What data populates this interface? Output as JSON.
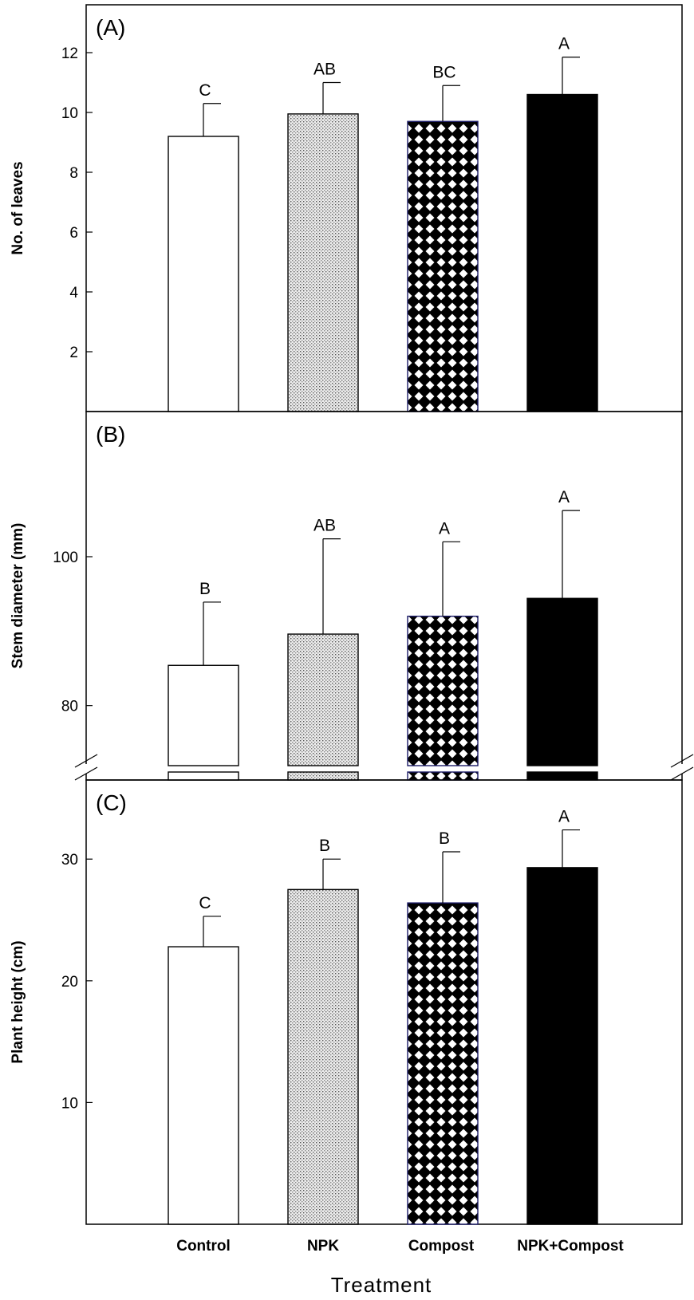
{
  "chart_data": {
    "type": "bar",
    "categories": [
      "Control",
      "NPK",
      "Compost",
      "NPK+Compost"
    ],
    "xlabel": "Treatment",
    "panels": [
      {
        "label": "(A)",
        "ylabel": "No. of leaves",
        "ylim": [
          0,
          13.6
        ],
        "yticks": [
          2,
          4,
          6,
          8,
          10,
          12
        ],
        "values": [
          9.2,
          9.95,
          9.7,
          10.6
        ],
        "errors": [
          1.1,
          1.05,
          1.2,
          1.25
        ],
        "significance": [
          "C",
          "AB",
          "BC",
          "A"
        ]
      },
      {
        "label": "(B)",
        "ylabel": "Stem diameter (mm)",
        "ylim": [
          70,
          119.5
        ],
        "axis_break": true,
        "yticks": [
          80,
          100
        ],
        "values": [
          85.4,
          89.6,
          92.0,
          94.4
        ],
        "errors": [
          8.5,
          12.8,
          10.0,
          11.8
        ],
        "significance": [
          "B",
          "AB",
          "A",
          "A"
        ]
      },
      {
        "label": "(C)",
        "ylabel": "Plant height (cm)",
        "ylim": [
          0,
          36.5
        ],
        "yticks": [
          10,
          20,
          30
        ],
        "values": [
          22.8,
          27.5,
          26.4,
          29.3
        ],
        "errors": [
          2.5,
          2.5,
          4.2,
          3.1
        ],
        "significance": [
          "C",
          "B",
          "B",
          "A"
        ]
      }
    ]
  }
}
